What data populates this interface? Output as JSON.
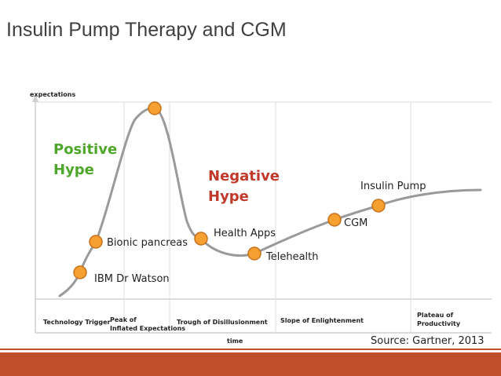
{
  "title": "Insulin Pump Therapy and CGM",
  "chart_data": {
    "type": "line",
    "xlabel": "time",
    "ylabel": "expectations",
    "phases": [
      "Technology Trigger",
      "Peak of Inflated Expectations",
      "Trough of Disillusionment",
      "Slope of Enlightenment",
      "Plateau of Productivity"
    ],
    "phase_labels": {
      "tech": "Technology Trigger",
      "peak_1": "Peak of",
      "peak_2": "Inflated Expectations",
      "trough": "Trough of Disillusionment",
      "slope": "Slope of Enlightenment",
      "plateau_1": "Plateau of",
      "plateau_2": "Productivity"
    },
    "points": [
      {
        "label": "IBM Dr Watson",
        "x": 0.1,
        "y": 0.17
      },
      {
        "label": "Bionic pancreas",
        "x": 0.13,
        "y": 0.29
      },
      {
        "label": "",
        "x": 0.26,
        "y": 0.95
      },
      {
        "label": "Health Apps",
        "x": 0.38,
        "y": 0.29
      },
      {
        "label": "Telehealth",
        "x": 0.51,
        "y": 0.22
      },
      {
        "label": "CGM",
        "x": 0.67,
        "y": 0.38
      },
      {
        "label": "Insulin Pump",
        "x": 0.78,
        "y": 0.46
      }
    ],
    "annotations": {
      "positive_line1": "Positive",
      "positive_line2": "Hype",
      "negative_line1": "Negative",
      "negative_line2": "Hype"
    },
    "source": "Source:   Gartner, 2013"
  },
  "colors": {
    "curve": "#9a9a9a",
    "marker_fill": "#f5a030",
    "marker_stroke": "#c8701a",
    "positive": "#4ea72a",
    "negative": "#c0392b",
    "footer": "#c1502a"
  }
}
